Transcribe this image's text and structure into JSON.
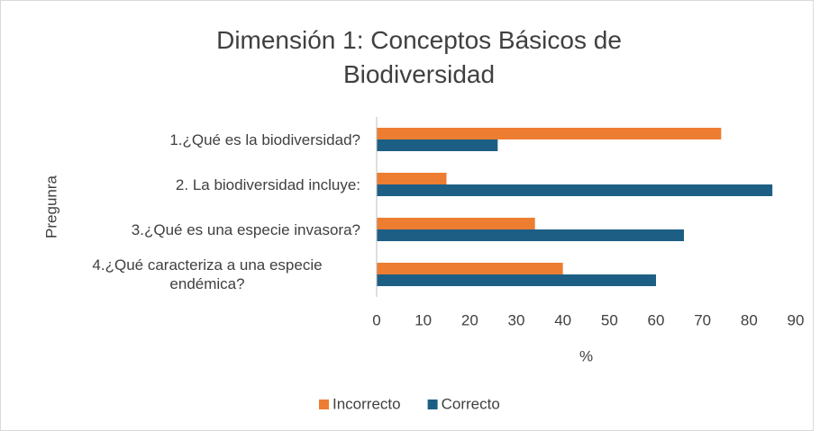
{
  "chart_data": {
    "type": "barh",
    "title": "Dimensión 1: Conceptos Básicos de Biodiversidad",
    "y_label": "Pregunra",
    "x_label": "%",
    "categories": [
      "1.¿Qué es la biodiversidad?",
      "2. La biodiversidad incluye:",
      "3.¿Qué es una especie invasora?",
      "4.¿Qué caracteriza a una especie endémica?"
    ],
    "series": [
      {
        "name": "Incorrecto",
        "color": "#ed7d31",
        "values": [
          74,
          15,
          34,
          40
        ]
      },
      {
        "name": "Correcto",
        "color": "#1d5f84",
        "values": [
          26,
          85,
          66,
          60
        ]
      }
    ],
    "xlim": [
      0,
      90
    ],
    "xticks": [
      0,
      10,
      20,
      30,
      40,
      50,
      60,
      70,
      80,
      90
    ],
    "grid": false,
    "legend": "bottom"
  }
}
